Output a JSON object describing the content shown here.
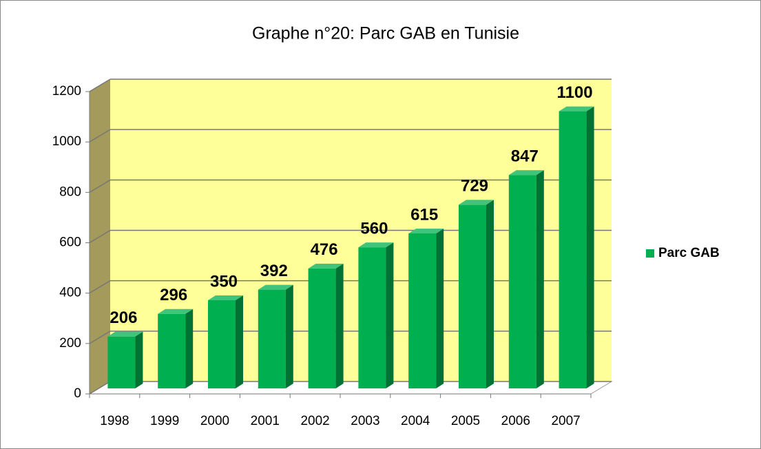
{
  "chart_data": {
    "type": "bar",
    "title": "Graphe n°20: Parc GAB en Tunisie",
    "categories": [
      "1998",
      "1999",
      "2000",
      "2001",
      "2002",
      "2003",
      "2004",
      "2005",
      "2006",
      "2007"
    ],
    "series": [
      {
        "name": "Parc GAB",
        "color": "#00b050",
        "values": [
          206,
          296,
          350,
          392,
          476,
          560,
          615,
          729,
          847,
          1100
        ]
      }
    ],
    "ylim": [
      0,
      1200
    ],
    "yticks": [
      0,
      200,
      400,
      600,
      800,
      1000,
      1200
    ],
    "grid": true,
    "legend": "right"
  }
}
